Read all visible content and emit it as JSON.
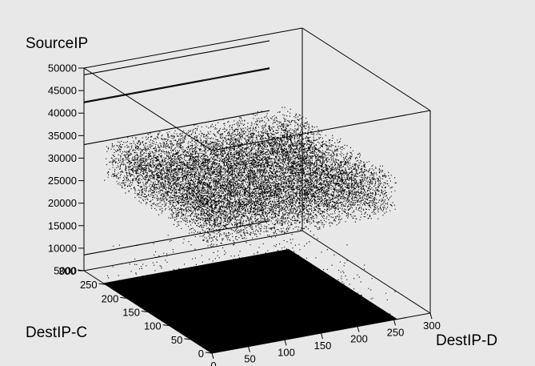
{
  "chart_data": {
    "type": "scatter",
    "title": "",
    "zlabel": "SourceIP",
    "xlabel": "DestIP-D",
    "ylabel": "DestIP-C",
    "xlim": [
      0,
      300
    ],
    "ylim": [
      0,
      300
    ],
    "zlim": [
      5000,
      50000
    ],
    "x_ticks": [
      0,
      50,
      100,
      150,
      200,
      250,
      300
    ],
    "y_ticks": [
      0,
      50,
      100,
      150,
      200,
      250,
      300
    ],
    "z_ticks": [
      5000,
      10000,
      15000,
      20000,
      25000,
      30000,
      35000,
      40000,
      45000,
      50000
    ],
    "colors": {
      "background": "#e8e8e8",
      "frame": "#000000",
      "points": "#000000"
    },
    "series": [
      {
        "kind": "dense-uniform-layer",
        "x_range": [
          0,
          255
        ],
        "y_range": [
          0,
          255
        ],
        "z_value": 5000
      },
      {
        "kind": "uniform-scatter-layer",
        "x_range": [
          0,
          255
        ],
        "y_range": [
          0,
          255
        ],
        "z_range": [
          28000,
          37000
        ],
        "approx_points": 14000
      },
      {
        "kind": "sparse-scatter-layer",
        "x_range": [
          0,
          255
        ],
        "y_range": [
          0,
          255
        ],
        "z_range": [
          5000,
          15000
        ],
        "approx_points": 550
      },
      {
        "kind": "constant-y-lines",
        "y": 300,
        "x_range": [
          0,
          255
        ],
        "z_values": [
          48500,
          42500,
          42300,
          33000,
          8500
        ]
      }
    ]
  }
}
